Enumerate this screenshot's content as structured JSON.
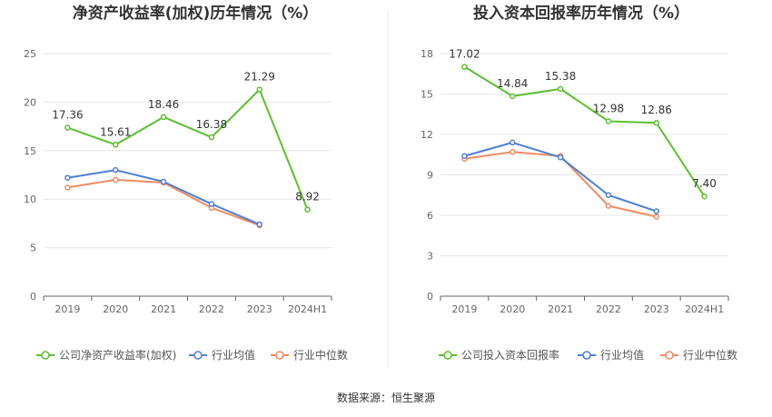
{
  "chart_data": [
    {
      "type": "line",
      "title": "净资产收益率(加权)历年情况（%）",
      "categories": [
        "2019",
        "2020",
        "2021",
        "2022",
        "2023",
        "2024H1"
      ],
      "ylim": [
        0,
        25
      ],
      "yticks": [
        0,
        5,
        10,
        15,
        20,
        25
      ],
      "grid": true,
      "legend_position": "bottom",
      "series": [
        {
          "name": "公司净资产收益率(加权)",
          "color": "#5ac02e",
          "values": [
            17.36,
            15.61,
            18.46,
            16.38,
            21.29,
            8.92
          ],
          "labels": [
            "17.36",
            "15.61",
            "18.46",
            "16.38",
            "21.29",
            "8.92"
          ]
        },
        {
          "name": "行业均值",
          "color": "#4e7fd8",
          "values": [
            12.2,
            13.0,
            11.8,
            9.5,
            7.4,
            null
          ]
        },
        {
          "name": "行业中位数",
          "color": "#f08a63",
          "values": [
            11.2,
            12.0,
            11.7,
            9.1,
            7.3,
            null
          ]
        }
      ]
    },
    {
      "type": "line",
      "title": "投入资本回报率历年情况（%）",
      "categories": [
        "2019",
        "2020",
        "2021",
        "2022",
        "2023",
        "2024H1"
      ],
      "ylim": [
        0,
        18
      ],
      "yticks": [
        0,
        3,
        6,
        9,
        12,
        15,
        18
      ],
      "grid": true,
      "legend_position": "bottom",
      "series": [
        {
          "name": "公司投入资本回报率",
          "color": "#5ac02e",
          "values": [
            17.02,
            14.84,
            15.38,
            12.98,
            12.86,
            7.4
          ],
          "labels": [
            "17.02",
            "14.84",
            "15.38",
            "12.98",
            "12.86",
            "7.40"
          ]
        },
        {
          "name": "行业均值",
          "color": "#4e7fd8",
          "values": [
            10.4,
            11.4,
            10.3,
            7.5,
            6.3,
            null
          ]
        },
        {
          "name": "行业中位数",
          "color": "#f08a63",
          "values": [
            10.2,
            10.7,
            10.4,
            6.7,
            5.9,
            null
          ]
        }
      ]
    }
  ],
  "source_text": "数据来源：恒生聚源"
}
